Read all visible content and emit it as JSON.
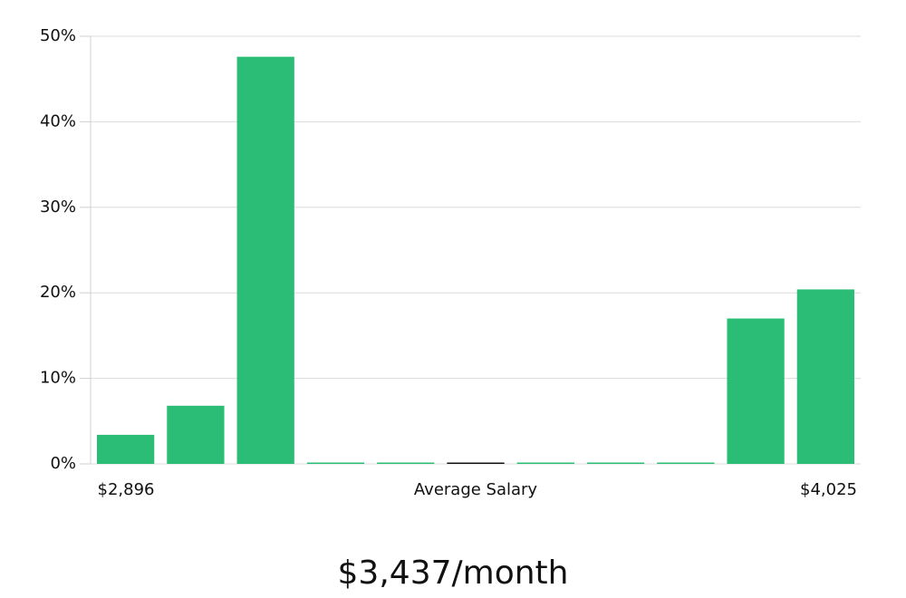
{
  "chart_data": {
    "type": "bar",
    "categories": [
      null,
      null,
      null,
      null,
      null,
      null,
      null,
      null,
      null,
      null,
      null
    ],
    "values": [
      3.4,
      6.8,
      47.6,
      0,
      0,
      0,
      0,
      0,
      0,
      17.0,
      20.4
    ],
    "colors": [
      "#2bbd76",
      "#2bbd76",
      "#2bbd76",
      "#2bbd76",
      "#2bbd76",
      "#111111",
      "#2bbd76",
      "#2bbd76",
      "#2bbd76",
      "#2bbd76",
      "#2bbd76"
    ],
    "ylim": [
      0,
      50
    ],
    "yticks": [
      {
        "value": 0,
        "label": "0%"
      },
      {
        "value": 10,
        "label": "10%"
      },
      {
        "value": 20,
        "label": "20%"
      },
      {
        "value": 30,
        "label": "30%"
      },
      {
        "value": 40,
        "label": "40%"
      },
      {
        "value": 50,
        "label": "50%"
      }
    ],
    "grid": true,
    "x_min_label": "$2,896",
    "x_label": "Average Salary",
    "x_max_label": "$4,025",
    "footer": "$3,437/month"
  }
}
